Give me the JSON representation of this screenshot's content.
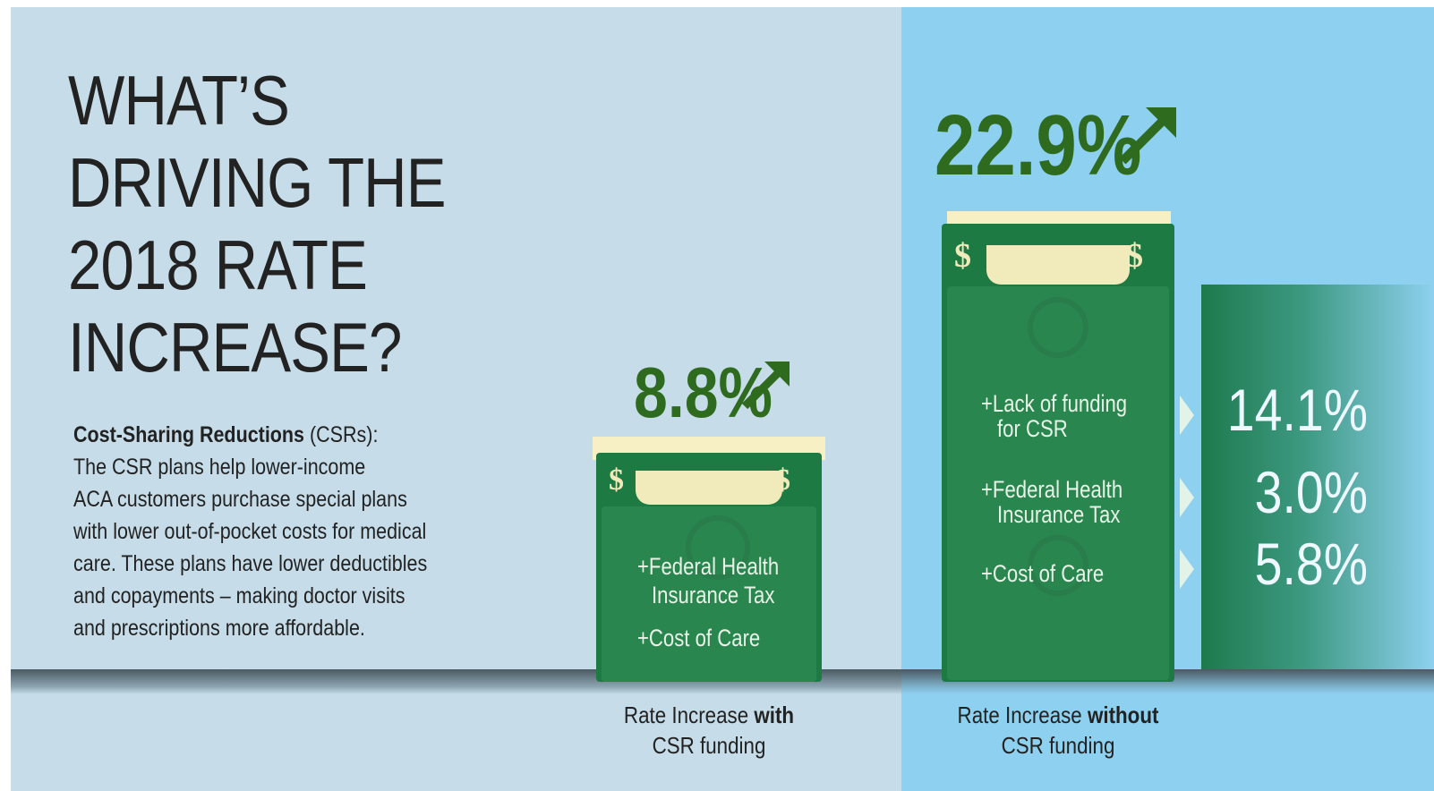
{
  "title_lines": [
    "WHAT’S",
    "DRIVING THE",
    "2018 RATE",
    "INCREASE?"
  ],
  "description": {
    "term": "Cost-Sharing Reductions",
    "abbr": " (CSRs):",
    "lines": [
      "The CSR plans help lower-income",
      "ACA customers purchase special plans",
      "with lower out-of-pocket costs for medical",
      "care. These plans have lower deductibles",
      "and copayments – making doctor visits",
      "and prescriptions more affordable."
    ]
  },
  "with_csr": {
    "percent": "8.8%",
    "items": [
      "+Federal Health",
      "Insurance Tax",
      "+Cost of Care"
    ],
    "caption_regular": "Rate Increase ",
    "caption_bold": "with",
    "caption_line2": "CSR funding"
  },
  "without_csr": {
    "percent": "22.9%",
    "items": [
      "+Lack of funding",
      "for CSR",
      "+Federal Health",
      "Insurance Tax",
      "+Cost of Care"
    ],
    "breakdown": [
      "14.1%",
      "3.0%",
      "5.8%"
    ],
    "caption_regular": "Rate Increase ",
    "caption_bold": "without",
    "caption_line2": "CSR funding"
  },
  "colors": {
    "left_background": "#c6dde9",
    "right_background": "#8ed0ef",
    "bill_green": "#1e7a43",
    "percent_green": "#2e6b1f",
    "bill_cream": "#f1ebbc"
  },
  "icons": [
    "up-arrow-icon",
    "dollar-sign-icon",
    "chevron-right-icon"
  ]
}
